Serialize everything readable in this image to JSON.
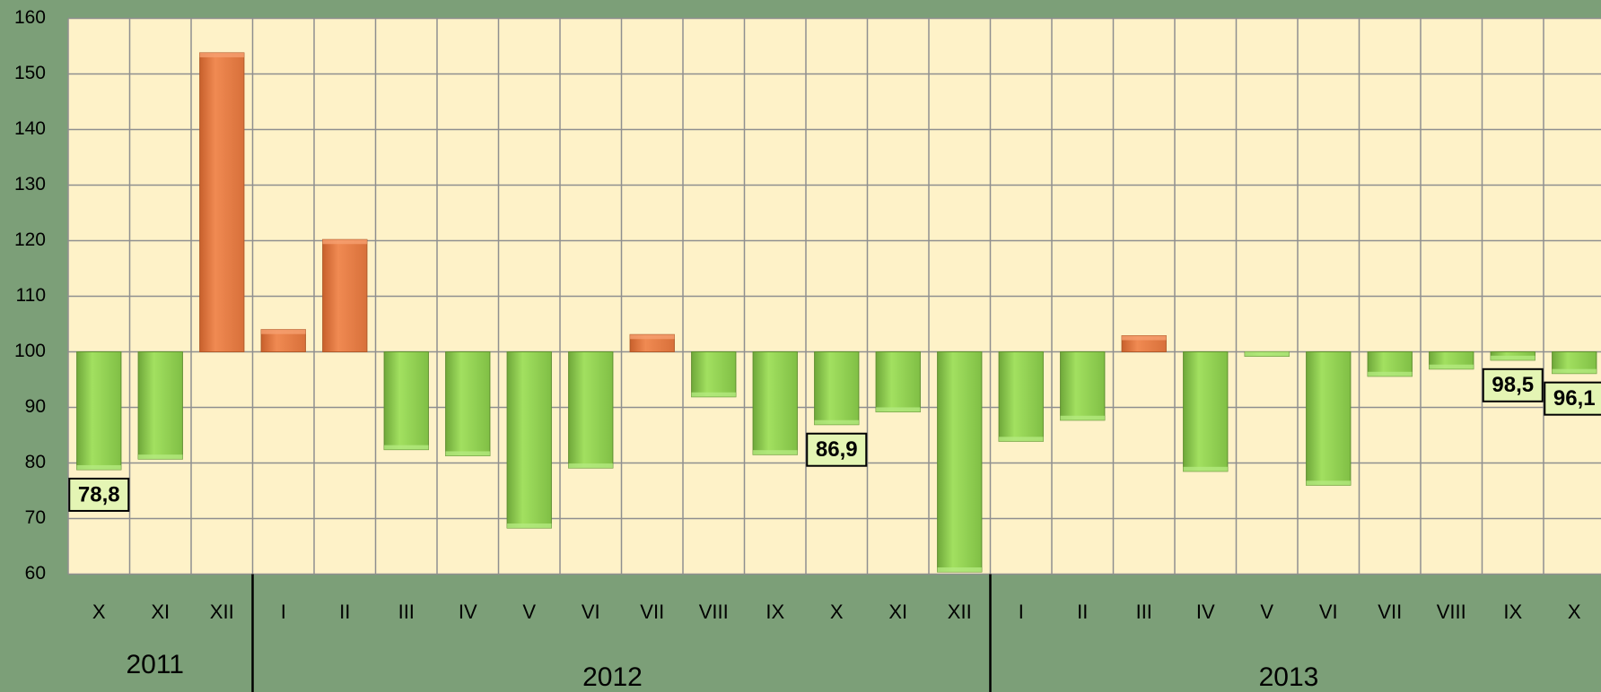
{
  "chart_data": {
    "type": "bar",
    "categories": [
      "X",
      "XI",
      "XII",
      "I",
      "II",
      "III",
      "IV",
      "V",
      "VI",
      "VII",
      "VIII",
      "IX",
      "X",
      "XI",
      "XII",
      "I",
      "II",
      "III",
      "IV",
      "V",
      "VI",
      "VII",
      "VIII",
      "IX",
      "X"
    ],
    "values": [
      78.8,
      80.7,
      153.8,
      104,
      120.2,
      82.4,
      81.3,
      68.3,
      79.1,
      103.1,
      91.9,
      81.5,
      86.9,
      89.2,
      60.4,
      83.9,
      87.7,
      102.9,
      78.5,
      99.2,
      76,
      95.6,
      96.9,
      98.5,
      96.1
    ],
    "value_labels": [
      "78,8",
      null,
      null,
      null,
      null,
      null,
      null,
      null,
      null,
      null,
      null,
      null,
      "86,9",
      null,
      null,
      null,
      null,
      null,
      null,
      null,
      null,
      null,
      null,
      "98,5",
      "96,1"
    ],
    "groups": [
      {
        "name": "2011",
        "size": 3
      },
      {
        "name": "2012",
        "size": 12
      },
      {
        "name": "2013",
        "size": 10
      }
    ],
    "baseline": 100,
    "color_above": "#e8804a",
    "color_below": "#92d050",
    "ylim": [
      60,
      160
    ],
    "yticks": [
      60,
      70,
      80,
      90,
      100,
      110,
      120,
      130,
      140,
      150,
      160
    ],
    "grid": true
  }
}
